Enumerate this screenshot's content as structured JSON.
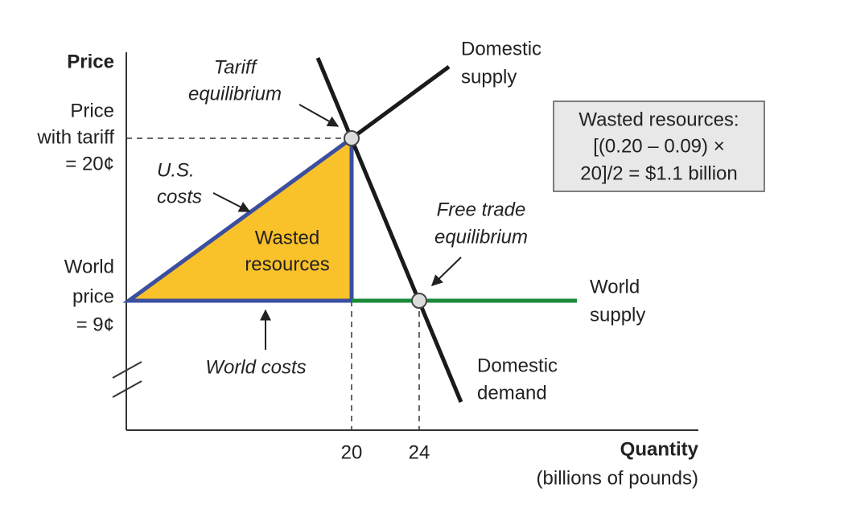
{
  "axes": {
    "y_title": "Price",
    "x_title": "Quantity",
    "x_subtitle": "(billions of pounds)",
    "y_labels": {
      "price_with_tariff": [
        "Price",
        "with tariff",
        "= 20¢"
      ],
      "world_price": [
        "World",
        "price",
        "= 9¢"
      ]
    },
    "x_labels": [
      "20",
      "24"
    ]
  },
  "curves": {
    "domestic_supply": [
      "Domestic",
      "supply"
    ],
    "domestic_demand": [
      "Domestic",
      "demand"
    ],
    "world_supply": [
      "World",
      "supply"
    ]
  },
  "annotations": {
    "tariff_equilibrium": [
      "Tariff",
      "equilibrium"
    ],
    "free_trade_equilibrium": [
      "Free trade",
      "equilibrium"
    ],
    "us_costs": [
      "U.S.",
      "costs"
    ],
    "world_costs": "World costs",
    "wasted_resources": [
      "Wasted",
      "resources"
    ]
  },
  "box": [
    "Wasted resources:",
    "[(0.20 – 0.09)  ×",
    "20]/2 = $1.1 billion"
  ]
}
